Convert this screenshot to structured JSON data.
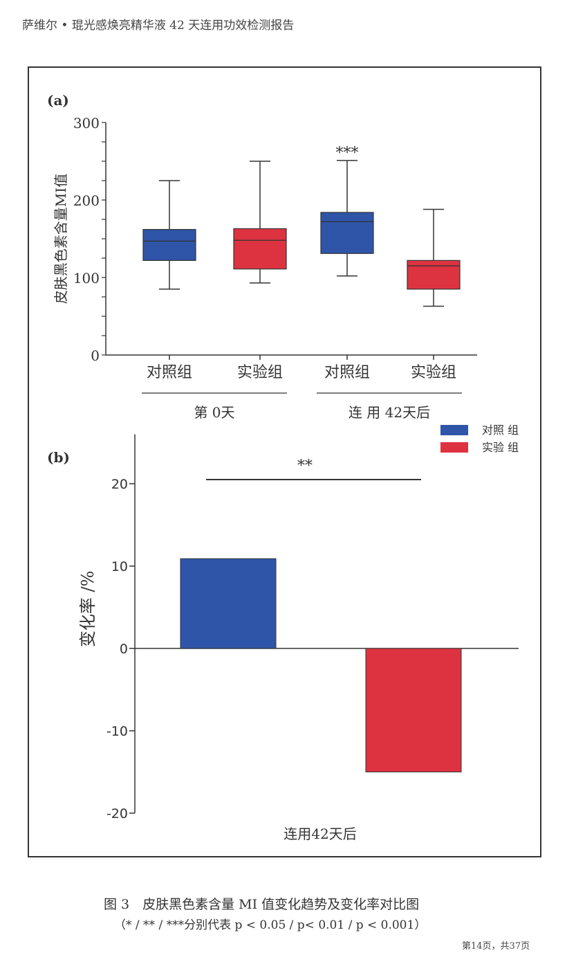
{
  "header": {
    "title": "萨维尔 • 琨光感焕亮精华液 42 天连用功效检测报告"
  },
  "caption": {
    "title": "图 3　皮肤黑色素含量 MI 值变化趋势及变化率对比图",
    "note": "（* / ** / ***分别代表 p < 0.05 / p< 0.01 / p < 0.001）"
  },
  "footer": {
    "page": "第14页，共37页"
  },
  "colors": {
    "control": "#2f55a8",
    "experiment": "#dd3340"
  },
  "chart_data": [
    {
      "type": "box",
      "panel_label": "(a)",
      "ylabel": "皮肤黑色素含量MI值",
      "ylim": [
        0,
        300
      ],
      "yticks": [
        0,
        100,
        200,
        300
      ],
      "categories": [
        "对照组",
        "实验组",
        "对照组",
        "实验组"
      ],
      "group_labels": [
        "第 0天",
        "连 用 42天后"
      ],
      "boxes": [
        {
          "group": "对照组",
          "min": 85,
          "q1": 122,
          "median": 147,
          "q3": 162,
          "max": 225,
          "color": "#2f55a8",
          "annotation": ""
        },
        {
          "group": "实验组",
          "min": 93,
          "q1": 111,
          "median": 148,
          "q3": 163,
          "max": 250,
          "color": "#dd3340",
          "annotation": ""
        },
        {
          "group": "对照组",
          "min": 102,
          "q1": 131,
          "median": 172,
          "q3": 184,
          "max": 251,
          "color": "#2f55a8",
          "annotation": "***"
        },
        {
          "group": "实验组",
          "min": 63,
          "q1": 85,
          "median": 115,
          "q3": 122,
          "max": 188,
          "color": "#dd3340",
          "annotation": ""
        }
      ]
    },
    {
      "type": "bar",
      "panel_label": "(b)",
      "ylabel": "变化率 /%",
      "xlabel": "连用42天后",
      "ylim": [
        -20,
        26
      ],
      "yticks": [
        -20,
        -10,
        0,
        10,
        20
      ],
      "series": [
        {
          "name": "对照 组",
          "values": [
            10.9
          ],
          "color": "#2f55a8"
        },
        {
          "name": "实验 组",
          "values": [
            -15.0
          ],
          "color": "#dd3340"
        }
      ],
      "significance": "**",
      "legend": "top-right"
    }
  ]
}
